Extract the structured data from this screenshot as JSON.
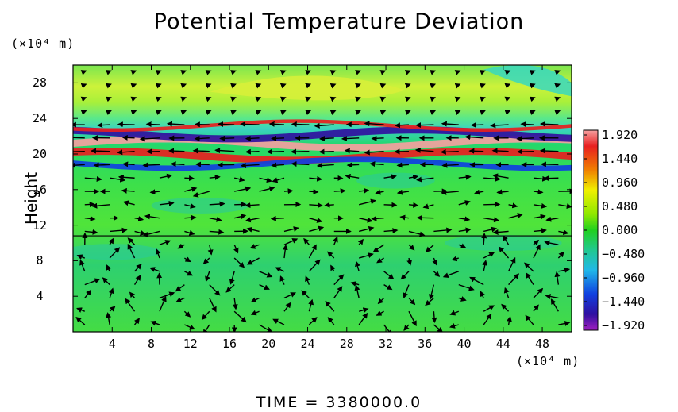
{
  "chart_data": {
    "type": "heatmap",
    "title": "Potential Temperature Deviation",
    "ylabel": "Height",
    "y_unit": "(×10⁴ m)",
    "x_unit": "(×10⁴ m)",
    "footer": "TIME = 3380000.0",
    "x_ticks": [
      "4",
      "8",
      "12",
      "16",
      "20",
      "24",
      "28",
      "32",
      "36",
      "40",
      "44",
      "48"
    ],
    "y_ticks": [
      "4",
      "8",
      "12",
      "16",
      "20",
      "24",
      "28"
    ],
    "xlim": [
      0,
      51
    ],
    "ylim": [
      0,
      30
    ],
    "colorbar": {
      "labels": [
        "1.920",
        "1.440",
        "0.960",
        "0.480",
        "0.000",
        "−0.480",
        "−0.960",
        "−1.440",
        "−1.920"
      ],
      "range": [
        -1.92,
        1.92
      ]
    },
    "bands": [
      {
        "y_low": 20.8,
        "y_high": 21.6,
        "value": 1.9
      },
      {
        "y_low": 19.4,
        "y_high": 20.2,
        "value": 1.6
      },
      {
        "y_low": 21.8,
        "y_high": 22.6,
        "value": -1.7
      },
      {
        "y_low": 18.6,
        "y_high": 19.2,
        "value": -1.3
      },
      {
        "y_low": 23.0,
        "y_high": 23.4,
        "value": 1.3
      },
      {
        "y_low": 25.5,
        "y_high": 30.0,
        "value": 0.6
      },
      {
        "y_low": 0.0,
        "y_high": 18.0,
        "value": 0.1
      }
    ],
    "horizontal_line_y": 10.8,
    "vectors": "wind field arrows"
  }
}
